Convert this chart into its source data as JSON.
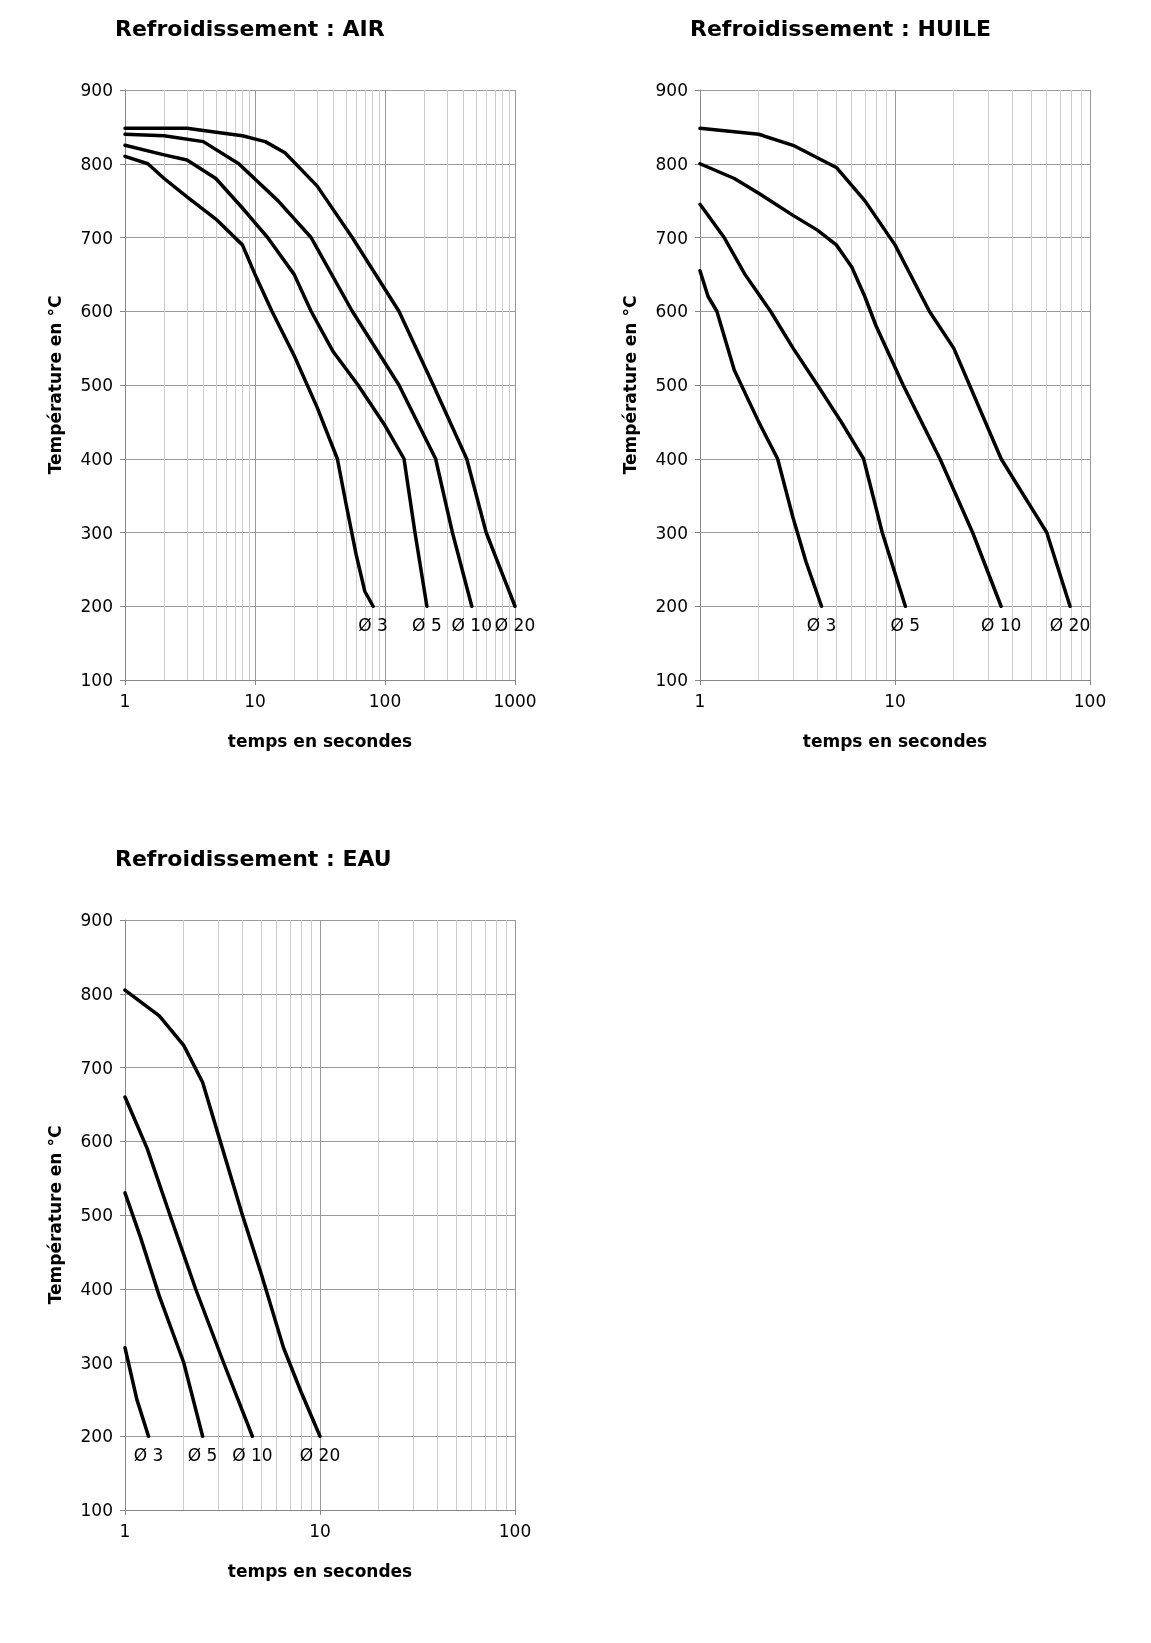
{
  "chart_data": [
    {
      "type": "line",
      "title": "Refroidissement : AIR",
      "xlabel": "temps en secondes",
      "ylabel": "Température en °C",
      "log": "x",
      "xlim": [
        1,
        1000
      ],
      "xticks": [
        1,
        10,
        100,
        1000
      ],
      "ylim": [
        100,
        900
      ],
      "yticks": [
        100,
        200,
        300,
        400,
        500,
        600,
        700,
        800,
        900
      ],
      "grid": true,
      "legend": false,
      "marker": "none",
      "line_style": "solid",
      "series": [
        {
          "name": "Ø 3",
          "color": "#000000",
          "x": [
            1,
            1.5,
            2,
            3,
            5,
            8,
            10,
            13.5,
            20,
            30,
            43,
            50,
            60,
            70,
            81
          ],
          "values": [
            810,
            800,
            780,
            755,
            725,
            690,
            650,
            600,
            540,
            470,
            400,
            340,
            270,
            220,
            200
          ]
        },
        {
          "name": "Ø 5",
          "color": "#000000",
          "x": [
            1,
            2,
            3,
            5,
            8,
            12.5,
            20,
            27,
            40,
            62,
            100,
            140,
            170,
            210
          ],
          "values": [
            825,
            812,
            805,
            780,
            740,
            700,
            650,
            600,
            545,
            500,
            445,
            400,
            300,
            200
          ]
        },
        {
          "name": "Ø 10",
          "color": "#000000",
          "x": [
            1,
            2,
            4,
            7.5,
            15,
            27,
            56,
            128,
            245,
            330,
            465
          ],
          "values": [
            840,
            838,
            830,
            800,
            750,
            700,
            600,
            500,
            400,
            300,
            200
          ]
        },
        {
          "name": "Ø 20",
          "color": "#000000",
          "x": [
            1,
            2,
            3,
            4,
            8,
            12,
            17,
            30,
            56,
            128,
            235,
            425,
            600,
            1000
          ],
          "values": [
            848,
            848,
            848,
            845,
            838,
            830,
            815,
            770,
            700,
            600,
            500,
            400,
            300,
            200
          ]
        }
      ]
    },
    {
      "type": "line",
      "title": "Refroidissement : HUILE",
      "xlabel": "temps en secondes",
      "ylabel": "Température en °C",
      "log": "x",
      "xlim": [
        1,
        100
      ],
      "xticks": [
        1,
        10,
        100
      ],
      "ylim": [
        100,
        900
      ],
      "yticks": [
        100,
        200,
        300,
        400,
        500,
        600,
        700,
        800,
        900
      ],
      "grid": true,
      "legend": false,
      "marker": "none",
      "line_style": "solid",
      "series": [
        {
          "name": "Ø 3",
          "color": "#000000",
          "x": [
            1,
            1.1,
            1.22,
            1.5,
            2,
            2.5,
            3,
            3.5,
            4.2
          ],
          "values": [
            655,
            620,
            600,
            520,
            450,
            400,
            320,
            260,
            200
          ]
        },
        {
          "name": "Ø 5",
          "color": "#000000",
          "x": [
            1,
            1.33,
            1.7,
            2.3,
            3,
            4,
            5.3,
            6.9,
            8.6,
            11.3
          ],
          "values": [
            745,
            700,
            650,
            600,
            550,
            500,
            450,
            400,
            300,
            200
          ]
        },
        {
          "name": "Ø 10",
          "color": "#000000",
          "x": [
            1,
            1.5,
            2,
            3,
            4,
            5,
            6,
            7,
            8,
            11,
            17,
            25,
            35
          ],
          "values": [
            800,
            780,
            760,
            730,
            710,
            690,
            660,
            620,
            580,
            500,
            400,
            300,
            200
          ]
        },
        {
          "name": "Ø 20",
          "color": "#000000",
          "x": [
            1,
            2,
            3,
            5,
            7,
            10,
            15,
            20,
            35,
            60,
            79
          ],
          "values": [
            848,
            840,
            825,
            795,
            750,
            690,
            600,
            550,
            400,
            300,
            200
          ]
        }
      ]
    },
    {
      "type": "line",
      "title": "Refroidissement : EAU",
      "xlabel": "temps en secondes",
      "ylabel": "Température en °C",
      "log": "x",
      "xlim": [
        1,
        100
      ],
      "xticks": [
        1,
        10,
        100
      ],
      "ylim": [
        100,
        900
      ],
      "yticks": [
        100,
        200,
        300,
        400,
        500,
        600,
        700,
        800,
        900
      ],
      "grid": true,
      "legend": false,
      "marker": "none",
      "line_style": "solid",
      "series": [
        {
          "name": "Ø 3",
          "color": "#000000",
          "x": [
            1,
            1.15,
            1.32
          ],
          "values": [
            320,
            250,
            200
          ]
        },
        {
          "name": "Ø 5",
          "color": "#000000",
          "x": [
            1,
            1.2,
            1.5,
            2,
            2.5
          ],
          "values": [
            530,
            470,
            390,
            300,
            200
          ]
        },
        {
          "name": "Ø 10",
          "color": "#000000",
          "x": [
            1,
            1.3,
            1.7,
            2.3,
            3.2,
            4.5
          ],
          "values": [
            660,
            590,
            500,
            400,
            300,
            200
          ]
        },
        {
          "name": "Ø 20",
          "color": "#000000",
          "x": [
            1,
            1.5,
            2,
            2.5,
            3,
            4,
            5,
            6.5,
            8,
            10
          ],
          "values": [
            805,
            770,
            730,
            680,
            610,
            500,
            420,
            320,
            260,
            200
          ]
        }
      ]
    }
  ]
}
